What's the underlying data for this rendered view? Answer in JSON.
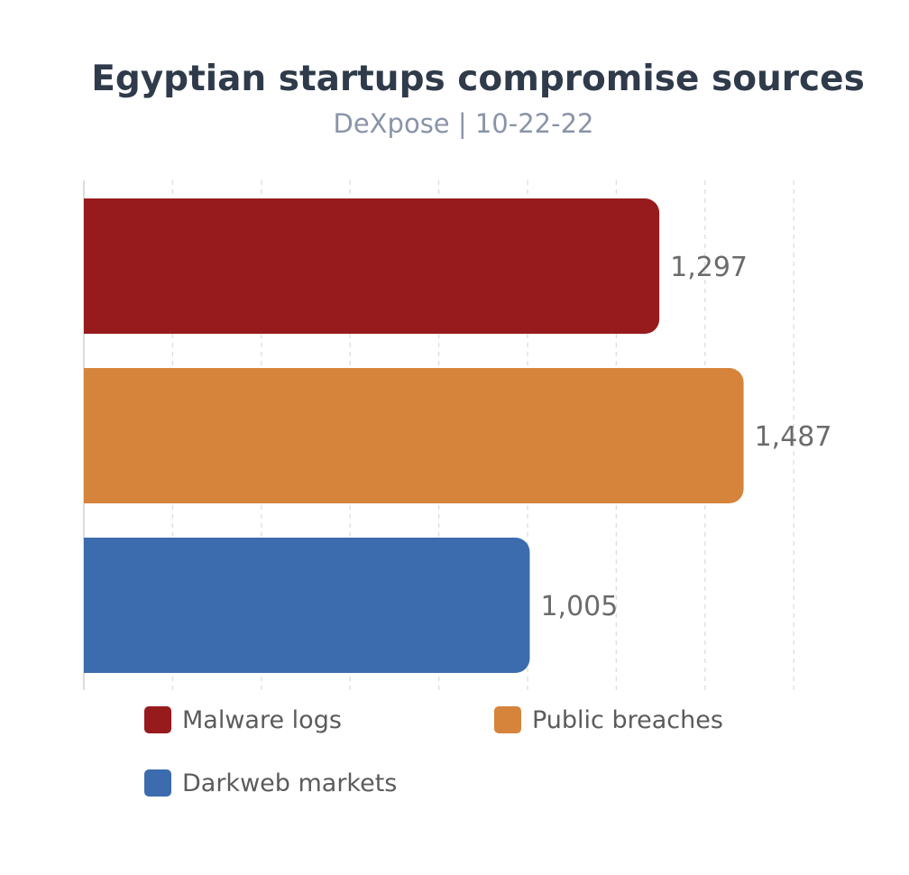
{
  "chart_data": {
    "type": "bar",
    "orientation": "horizontal",
    "title": "Egyptian startups compromise sources",
    "subtitle": "DeXpose | 10-22-22",
    "categories": [
      "Malware logs",
      "Public breaches",
      "Darkweb markets"
    ],
    "values": [
      1297,
      1487,
      1005
    ],
    "value_labels": [
      "1,297",
      "1,487",
      "1,005"
    ],
    "colors": [
      "#971b1c",
      "#d6843c",
      "#3c6cad"
    ],
    "xlim": [
      0,
      1600
    ],
    "grid": true,
    "grid_style": "dashed-vertical",
    "legend": {
      "placement": "bottom",
      "entries": [
        "Malware logs",
        "Public breaches",
        "Darkweb markets"
      ]
    }
  }
}
